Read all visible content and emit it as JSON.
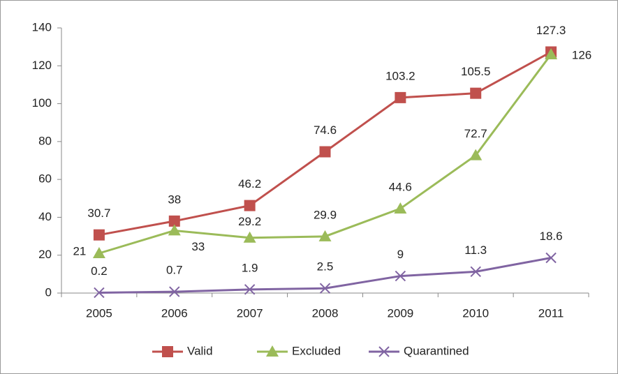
{
  "chart_data": {
    "type": "line",
    "categories": [
      "2005",
      "2006",
      "2007",
      "2008",
      "2009",
      "2010",
      "2011"
    ],
    "series": [
      {
        "name": "Valid",
        "color": "#c0504d",
        "marker": "square",
        "values": [
          30.7,
          38,
          46.2,
          74.6,
          103.2,
          105.5,
          127.3
        ]
      },
      {
        "name": "Excluded",
        "color": "#9bbb59",
        "marker": "triangle",
        "values": [
          21,
          33,
          29.2,
          29.9,
          44.6,
          72.7,
          126
        ]
      },
      {
        "name": "Quarantined",
        "color": "#8064a2",
        "marker": "x",
        "values": [
          0.2,
          0.7,
          1.9,
          2.5,
          9,
          11.3,
          18.6
        ]
      }
    ],
    "ylim": [
      0,
      140
    ],
    "yticks": [
      0,
      20,
      40,
      60,
      80,
      100,
      120,
      140
    ],
    "legend": "bottom"
  }
}
